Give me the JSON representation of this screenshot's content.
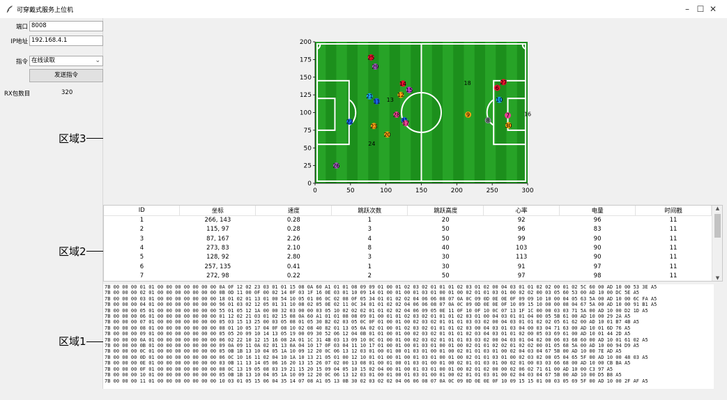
{
  "window": {
    "title": "可穿戴式服务上位机",
    "controls": {
      "minimize": "–",
      "maximize": "☐",
      "close": "✕"
    }
  },
  "left_panel": {
    "port_label": "端口",
    "port_value": "8008",
    "ip_label": "IP地址",
    "ip_value": "192.168.4.1",
    "cmd_label": "指令",
    "cmd_value": "在线读取",
    "send_button": "发送指令",
    "rx_label": "RX包数目",
    "rx_value": "320"
  },
  "regions": {
    "region3": "区域3",
    "region2": "区域2",
    "region1": "区域1"
  },
  "chart_data": {
    "type": "scatter",
    "xlim": [
      0,
      300
    ],
    "ylim": [
      0,
      200
    ],
    "xticks": [
      0,
      50,
      100,
      150,
      200,
      250,
      300
    ],
    "yticks": [
      0,
      25,
      50,
      75,
      100,
      125,
      150,
      175,
      200
    ],
    "background": "soccer-field",
    "points": [
      {
        "id": "25",
        "x": 79,
        "y": 178,
        "color": "#e8112d"
      },
      {
        "id": "29",
        "x": 85,
        "y": 165,
        "color": "#9b59b6"
      },
      {
        "id": "14",
        "x": 124,
        "y": 141,
        "color": "#e8112d"
      },
      {
        "id": "15",
        "x": 133,
        "y": 132,
        "color": "#c23ad0"
      },
      {
        "id": "12",
        "x": 121,
        "y": 125,
        "color": "#f39c12"
      },
      {
        "id": "13",
        "x": 106,
        "y": 118,
        "color": "none"
      },
      {
        "id": "21",
        "x": 77,
        "y": 123,
        "color": "#1aa0e8"
      },
      {
        "id": "11",
        "x": 87,
        "y": 116,
        "color": "#1a60e8"
      },
      {
        "id": "18",
        "x": 215,
        "y": 142,
        "color": "none"
      },
      {
        "id": "27",
        "x": 266,
        "y": 143,
        "color": "#e8112d"
      },
      {
        "id": "6",
        "x": 257,
        "y": 135,
        "color": "#e8112d"
      },
      {
        "id": "10",
        "x": 260,
        "y": 118,
        "color": "#1aa0e8"
      },
      {
        "id": "28",
        "x": 115,
        "y": 97,
        "color": "#e84393"
      },
      {
        "id": "31",
        "x": 126,
        "y": 89,
        "color": "#1a60e8"
      },
      {
        "id": "17",
        "x": 128,
        "y": 85,
        "color": "#e84393"
      },
      {
        "id": "9",
        "x": 216,
        "y": 97,
        "color": "#f39c12"
      },
      {
        "id": "8",
        "x": 244,
        "y": 89,
        "color": "#7f8c8d"
      },
      {
        "id": "7",
        "x": 272,
        "y": 96,
        "color": "#e84393"
      },
      {
        "id": "16",
        "x": 300,
        "y": 98,
        "color": "none"
      },
      {
        "id": "30",
        "x": 273,
        "y": 82,
        "color": "#f39c12"
      },
      {
        "id": "23",
        "x": 83,
        "y": 81,
        "color": "#f39c12"
      },
      {
        "id": "20",
        "x": 102,
        "y": 69,
        "color": "#f39c12"
      },
      {
        "id": "22",
        "x": 49,
        "y": 87,
        "color": "#1a60e8"
      },
      {
        "id": "24",
        "x": 80,
        "y": 56,
        "color": "none"
      },
      {
        "id": "26",
        "x": 30,
        "y": 25,
        "color": "#9b59b6"
      }
    ]
  },
  "table": {
    "headers": [
      "ID",
      "坐标",
      "速度",
      "跳跃次数",
      "跳跃高度",
      "心率",
      "电量",
      "时间戳"
    ],
    "rows": [
      [
        "1",
        "266, 143",
        "0.28",
        "1",
        "20",
        "92",
        "96",
        "11"
      ],
      [
        "2",
        "115, 97",
        "0.28",
        "3",
        "50",
        "96",
        "83",
        "11"
      ],
      [
        "3",
        "87, 167",
        "2.26",
        "4",
        "50",
        "99",
        "90",
        "11"
      ],
      [
        "4",
        "273, 83",
        "2.10",
        "8",
        "40",
        "103",
        "90",
        "11"
      ],
      [
        "5",
        "128, 92",
        "2.80",
        "3",
        "30",
        "113",
        "90",
        "11"
      ],
      [
        "6",
        "257, 135",
        "0.41",
        "1",
        "30",
        "91",
        "97",
        "11"
      ],
      [
        "7",
        "272, 98",
        "0.22",
        "2",
        "50",
        "97",
        "98",
        "11"
      ]
    ]
  },
  "hex_lines": [
    "7B 00 00 00 01 01 00 00 00 00 00 00 00 0A 0F 12 02 23 03 01 01 15 08 0A 60 A1 01 01 08 09 09 01 00 01 02 03 02 01 01 01 02 03 01 02 00 04 03 01 01 02 02 00 01 02 5C 60 00 AD 10 00 53 3E A5",
    "7B 00 00 00 02 01 00 00 00 00 00 00 00 0B 0D 11 00 0F 00 02 14 0F 03 1F 16 0E 03 01 10 09 14 01 00 01 00 01 03 01 00 01 00 02 01 01 03 01 00 02 02 00 03 05 60 53 00 AD 10 00 DC 5E A5",
    "7B 00 00 00 03 01 00 00 00 00 00 00 00 18 01 02 01 13 01 00 54 10 05 01 06 0C 02 08 0F 05 34 01 01 02 02 04 06 06 08 07 0A 0C 09 0D 0E 0E 0F 09 09 10 10 00 04 05 63 5A 00 AD 10 00 6C FA A5",
    "7B 00 00 00 04 01 00 00 00 00 00 00 00 96 01 03 02 12 05 01 31 10 08 02 05 0E 02 11 0C 34 01 01 02 02 04 06 06 08 07 0A 0C 09 0D 0E 0E 0F 10 09 15 10 00 00 08 04 67 5A 00 AD 10 00 91 B1 A5",
    "7B 00 00 00 05 01 00 00 00 00 00 00 00 55 01 05 12 1A 00 00 32 03 00 00 03 05 10 02 02 02 01 01 02 02 04 06 09 05 0E 11 0F 10 0F 10 0C 07 13 1F 1C 00 00 03 03 71 5A 00 AD 10 00 D2 1D A5",
    "7B 00 00 00 06 01 00 00 00 00 00 00 00 01 12 02 21 03 01 02 15 08 0A 60 A1 01 01 08 08 09 01 00 01 01 02 03 02 01 01 01 02 03 01 00 04 03 01 01 04 00 05 5B 61 00 AD 10 00 29 2A A5",
    "7B 00 00 00 07 01 00 00 00 00 00 00 00 05 03 15 13 25 00 03 05 08 01 05 30 B2 02 03 05 0C 0F 01 00 01 00 02 03 02 01 01 01 03 03 02 00 04 03 01 01 02 02 05 61 62 00 AD 10 01 B7 4B A5",
    "7B 00 00 00 08 01 00 00 00 00 00 00 00 08 01 10 05 17 04 0F 08 10 02 08 40 82 01 13 05 0A 02 01 00 01 02 03 02 01 01 01 02 03 00 04 03 01 03 04 00 03 04 71 63 00 AD 10 01 6D 76 A5",
    "7B 00 00 00 09 01 00 00 00 00 00 00 00 05 05 20 09 10 14 13 05 19 00 09 30 52 06 12 04 0B 01 01 00 01 00 02 03 02 01 01 01 02 03 04 03 01 01 02 00 05 03 69 61 00 AD 10 01 44 2D A5",
    "7B 00 00 00 0A 01 00 00 00 00 00 00 00 06 02 22 10 12 15 16 08 2A 01 1C 31 4B 03 13 09 10 0C 01 00 01 00 02 03 02 01 01 01 03 03 02 00 04 03 01 04 02 00 06 03 68 60 00 AD 10 01 61 02 A5",
    "7B 00 00 00 0B 01 00 00 00 00 00 00 00 09 0A 09 11 0A 02 01 13 0A 04 10 17 0F 03 04 11 10 17 01 00 01 00 01 03 01 00 01 00 02 01 01 02 02 01 02 02 00 01 05 68 5A 00 AD 10 00 94 D9 A5",
    "7B 00 00 00 0C 01 00 00 00 00 00 00 00 05 0B 1B 13 10 04 05 1A 10 09 12 20 0C 06 13 12 03 01 00 01 00 01 03 01 00 01 00 02 01 01 03 01 00 02 04 03 04 67 5B 00 AD 10 00 7E AD A5",
    "7B 00 00 00 0D 01 00 00 00 00 00 00 00 06 0C 10 16 11 02 04 10 1A 10 13 21 05 01 00 12 10 01 01 00 01 00 01 03 01 00 01 00 02 01 01 03 01 00 02 03 02 00 05 04 65 5F 00 AD 10 00 48 03 A5",
    "7B 00 00 00 0E 01 00 00 00 00 00 00 00 03 0B 11 13 14 05 06 16 20 13 15 26 07 02 00 13 08 01 00 01 00 01 03 01 00 01 00 02 01 01 03 01 00 02 01 00 03 03 66 68 00 AD 10 00 CB BA A5",
    "7B 00 00 00 0F 01 00 00 00 00 00 00 00 08 0C 13 19 05 08 03 19 21 15 20 15 09 04 05 10 15 02 04 00 01 00 01 03 01 00 01 00 02 01 02 00 00 02 06 02 71 61 00 AD 10 00 C3 97 A5",
    "7B 00 00 00 10 01 00 00 00 00 00 00 00 05 0B 1B 13 10 04 05 1A 10 09 12 20 0C 06 13 12 03 01 00 01 00 01 03 01 00 01 00 02 01 01 03 01 00 02 04 03 04 67 5B 00 AD 10 00 D5 B8 A5",
    "7B 00 00 00 11 01 00 00 00 00 00 00 00 10 03 01 05 15 06 04 35 14 07 08 A1 05 13 0B 30 02 03 02 02 04 06 06 08 07 0A 0C 09 0D 0E 0E 0F 10 09 15 15 01 00 03 05 69 5F 00 AD 10 00 2F AF A5"
  ]
}
